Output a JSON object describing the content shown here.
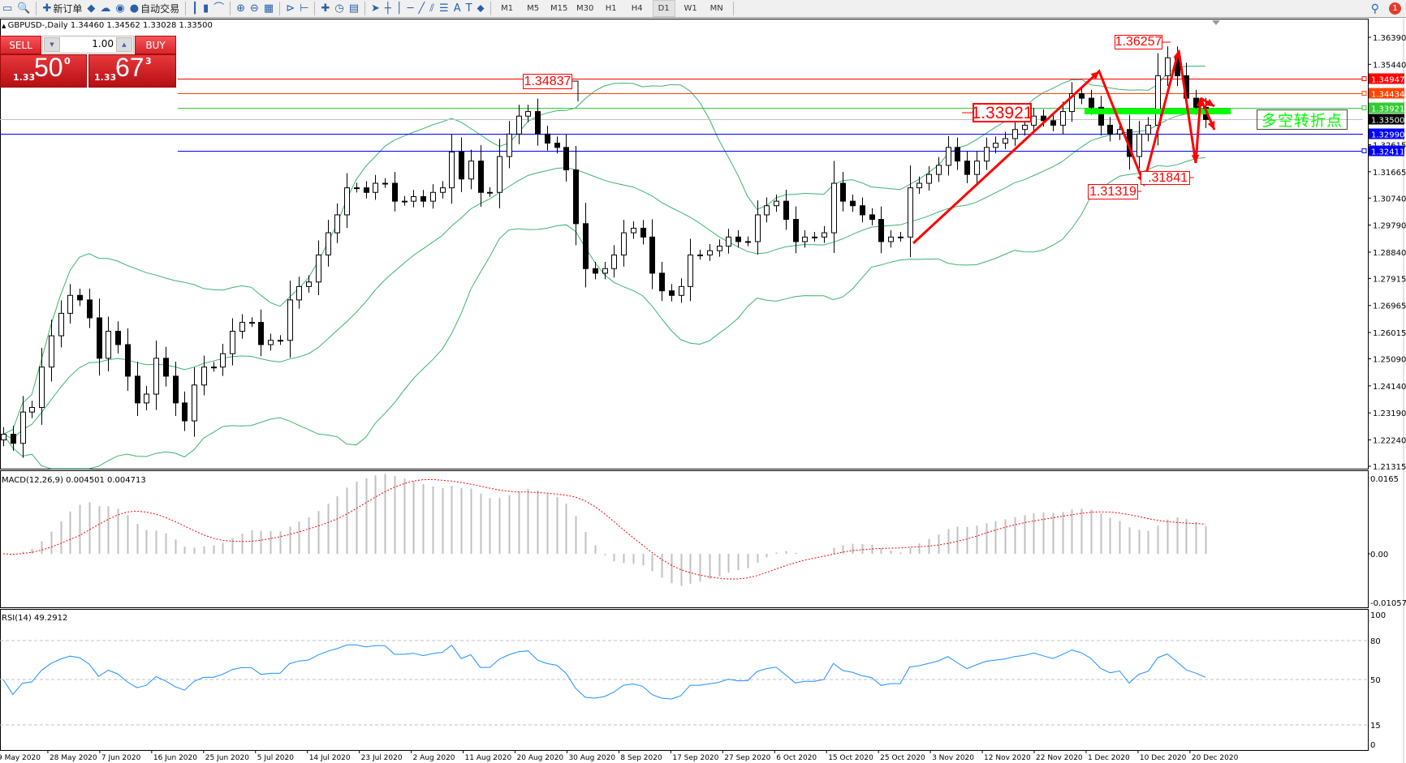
{
  "toolbar": {
    "items": [
      {
        "icon": "window-icon",
        "glyph": "▭"
      },
      {
        "icon": "zoom-document-icon",
        "glyph": "🔍"
      },
      {
        "icon": "new-order-icon",
        "glyph": "✚",
        "label": "新订单"
      },
      {
        "icon": "journal-icon",
        "glyph": "◆"
      },
      {
        "icon": "cloud-icon",
        "glyph": "☁"
      },
      {
        "icon": "signal-icon",
        "glyph": "◉"
      },
      {
        "icon": "auto-trading-icon",
        "glyph": "●",
        "label": "自动交易"
      },
      {
        "icon": "bar-chart-icon",
        "glyph": "┃"
      },
      {
        "icon": "candlestick-icon",
        "glyph": "▮"
      },
      {
        "icon": "line-chart-icon",
        "glyph": "⌒"
      },
      {
        "icon": "zoom-in-icon",
        "glyph": "⊕"
      },
      {
        "icon": "zoom-out-icon",
        "glyph": "⊖"
      },
      {
        "icon": "tile-windows-icon",
        "glyph": "▦"
      },
      {
        "icon": "chart-shift-icon",
        "glyph": "⊳"
      },
      {
        "icon": "auto-scroll-icon",
        "glyph": "⊢"
      },
      {
        "icon": "indicators-icon",
        "glyph": "✚"
      },
      {
        "icon": "periods-icon",
        "glyph": "◷"
      },
      {
        "icon": "templates-icon",
        "glyph": "▤"
      },
      {
        "icon": "cursor-icon",
        "glyph": "➤"
      },
      {
        "icon": "crosshair-icon",
        "glyph": "┼"
      },
      {
        "icon": "vertical-line-icon",
        "glyph": "│"
      },
      {
        "icon": "horizontal-line-icon",
        "glyph": "─"
      },
      {
        "icon": "trendline-icon",
        "glyph": "╱"
      },
      {
        "icon": "equidistant-channel-icon",
        "glyph": "⫽"
      },
      {
        "icon": "fibonacci-icon",
        "glyph": "☰"
      },
      {
        "icon": "text-icon",
        "glyph": "A"
      },
      {
        "icon": "text-label-icon",
        "glyph": "T"
      },
      {
        "icon": "arrows-icon",
        "glyph": "⬥"
      }
    ],
    "timeframes": [
      "M1",
      "M5",
      "M15",
      "M30",
      "H1",
      "H4",
      "D1",
      "W1",
      "MN"
    ],
    "active_timeframe": "D1",
    "notification_count": "1"
  },
  "chart": {
    "title": "GBPUSD-,Daily  1.34460 1.34562 1.33028 1.33500",
    "trade_panel": {
      "sell_label": "SELL",
      "buy_label": "BUY",
      "lot": "1.00",
      "sell_prefix": "1.33",
      "sell_big": "50",
      "sell_sup": "0",
      "buy_prefix": "1.33",
      "buy_big": "67",
      "buy_sup": "3"
    },
    "price_ticks": [
      "1.36390",
      "1.35440",
      "1.32615",
      "1.31665",
      "1.30740",
      "1.29790",
      "1.28840",
      "1.27915",
      "1.26965",
      "1.26015",
      "1.25090",
      "1.24140",
      "1.23190",
      "1.22240",
      "1.21315"
    ],
    "price_range": [
      1.21315,
      1.3639
    ],
    "levels": [
      {
        "price": "1.34947",
        "color": "#ff0000",
        "marker": true
      },
      {
        "price": "1.34434",
        "color": "#ff4500",
        "marker": true
      },
      {
        "price": "1.33921",
        "color": "#33cc33",
        "marker": true
      },
      {
        "price": "1.33500",
        "color": "#000000",
        "line_color": "#c0c0c0",
        "marker": false
      },
      {
        "price": "1.32990",
        "color": "#0000ff",
        "marker": false
      },
      {
        "price": "1.32411",
        "color": "#0000ff",
        "marker": true
      }
    ],
    "annotations": {
      "high_aug": "1.34837",
      "pivot": "1.33921",
      "high_dec": "1.36257",
      "low_dec1": "1.31319",
      "low_dec2": ".31841",
      "turning_point": "多空转折点"
    },
    "colors": {
      "bollinger": "#3cb371",
      "annotation": "#ff0000",
      "turn_bar": "#00ff00",
      "rsi": "#1e90ff",
      "macd_hist": "#c0c0c0",
      "macd_signal": "#ff0000"
    },
    "closes": [
      1.2244,
      1.2212,
      1.2322,
      1.2338,
      1.248,
      1.259,
      1.2669,
      1.2732,
      1.2716,
      1.2653,
      1.2511,
      1.2606,
      1.2559,
      1.2448,
      1.2354,
      1.2385,
      1.2511,
      1.2448,
      1.2354,
      1.2291,
      1.2417,
      1.248,
      1.248,
      1.2527,
      1.2606,
      1.2637,
      1.2637,
      1.2559,
      1.2574,
      1.2574,
      1.2716,
      1.2763,
      1.2779,
      1.2874,
      1.2952,
      1.3015,
      1.311,
      1.311,
      1.3094,
      1.3126,
      1.3126,
      1.3063,
      1.3063,
      1.3079,
      1.3063,
      1.3094,
      1.311,
      1.3236,
      1.3141,
      1.3204,
      1.3094,
      1.3094,
      1.322,
      1.3299,
      1.3362,
      1.3378,
      1.3299,
      1.3267,
      1.3252,
      1.3173,
      1.2984,
      1.2826,
      1.281,
      1.2826,
      1.2874,
      1.2952,
      1.2968,
      1.2937,
      1.281,
      1.2748,
      1.2732,
      1.2763,
      1.2874,
      1.2874,
      1.2889,
      1.2905,
      1.2937,
      1.2921,
      1.2921,
      1.3015,
      1.3047,
      1.3063,
      1.2999,
      1.2921,
      1.2937,
      1.2937,
      1.2952,
      1.3126,
      1.3063,
      1.3047,
      1.3015,
      1.2999,
      1.2921,
      1.2937,
      1.2937,
      1.311,
      1.3126,
      1.3157,
      1.3189,
      1.3252,
      1.3204,
      1.3157,
      1.3204,
      1.3252,
      1.3267,
      1.3283,
      1.3315,
      1.333,
      1.3362,
      1.3346,
      1.333,
      1.3378,
      1.3441,
      1.3425,
      1.3393,
      1.333,
      1.3299,
      1.3315,
      1.322,
      1.3299,
      1.333,
      1.3504,
      1.3567,
      1.3504,
      1.3425,
      1.3393,
      1.335
    ]
  },
  "macd": {
    "label": "MACD(12,26,9) 0.004501 0.004713",
    "ticks": [
      "0.0165",
      "0.00",
      "-0.010571"
    ],
    "range": [
      -0.010571,
      0.0165
    ]
  },
  "rsi": {
    "label": "RSI(14) 49.2912",
    "ticks": [
      "100",
      "80",
      "50",
      "15",
      "0"
    ],
    "levels": [
      80,
      50,
      15
    ]
  },
  "dates": [
    "9 May 2020",
    "28 May 2020",
    "7 Jun 2020",
    "16 Jun 2020",
    "25 Jun 2020",
    "5 Jul 2020",
    "14 Jul 2020",
    "23 Jul 2020",
    "2 Aug 2020",
    "11 Aug 2020",
    "20 Aug 2020",
    "30 Aug 2020",
    "8 Sep 2020",
    "17 Sep 2020",
    "27 Sep 2020",
    "6 Oct 2020",
    "15 Oct 2020",
    "25 Oct 2020",
    "3 Nov 2020",
    "12 Nov 2020",
    "22 Nov 2020",
    "1 Dec 2020",
    "10 Dec 2020",
    "20 Dec 2020"
  ]
}
